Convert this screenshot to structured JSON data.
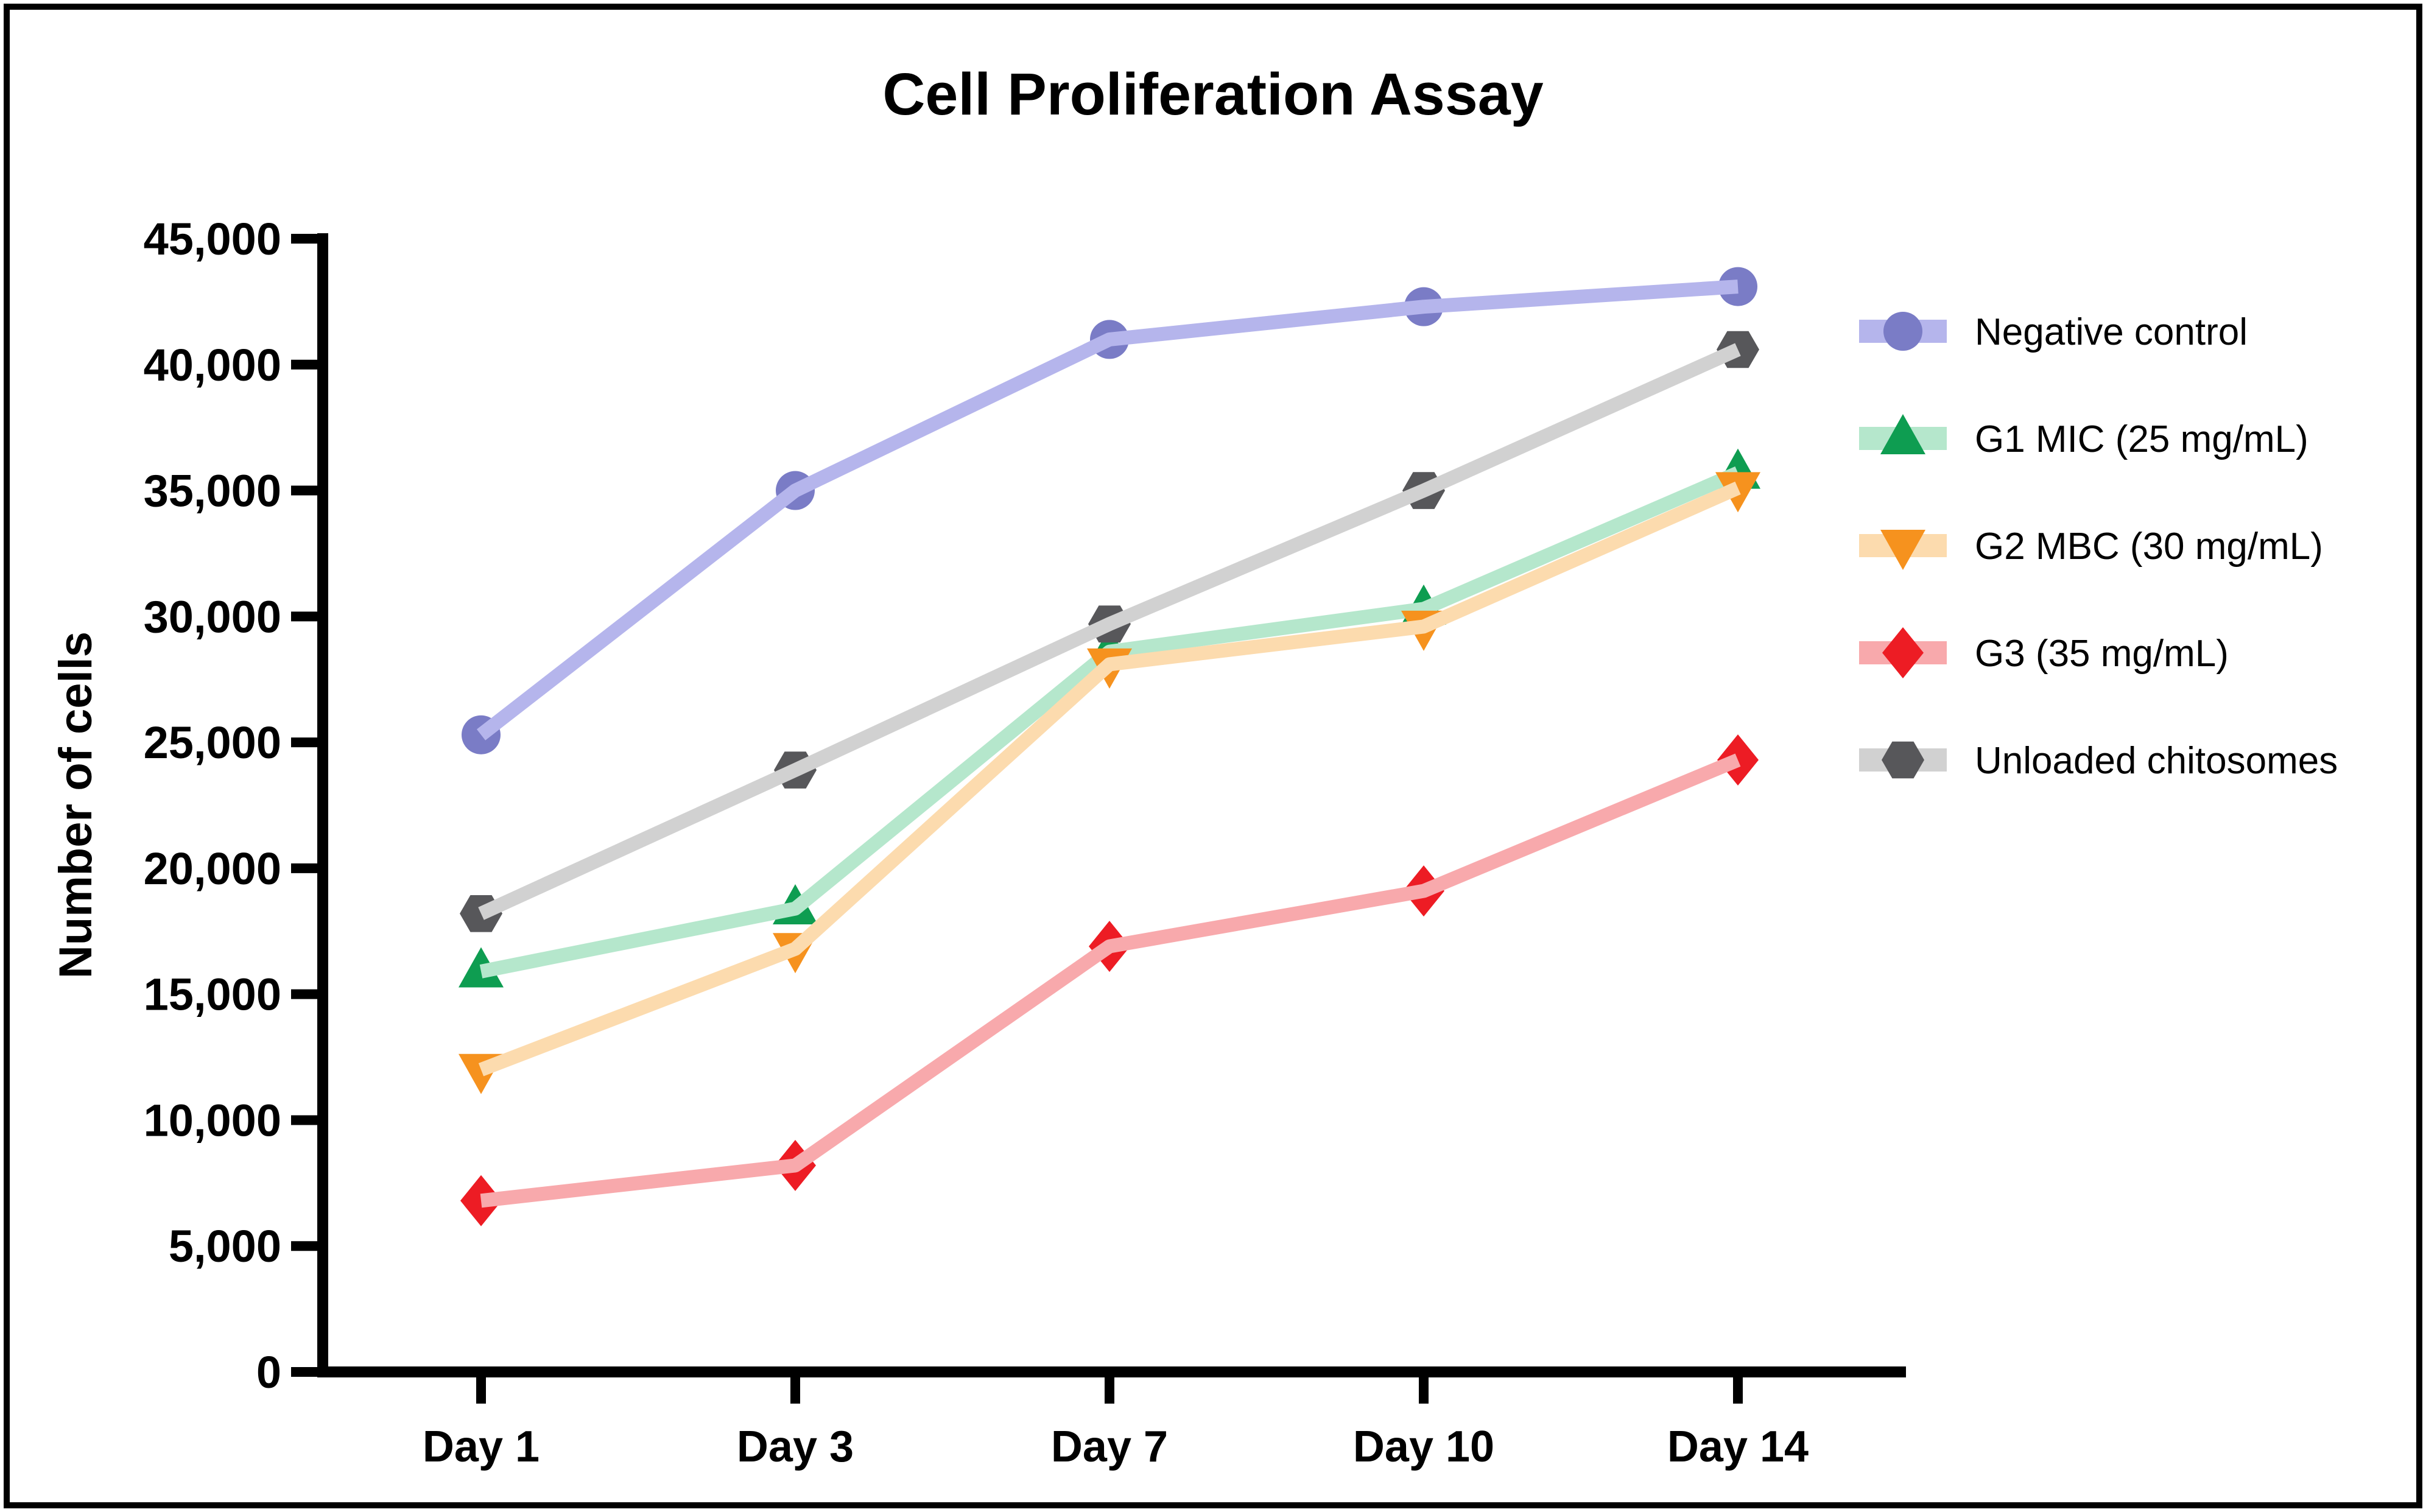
{
  "figure": {
    "title": "Cell Proliferation Assay",
    "border_color": "#000000",
    "background_color": "#ffffff",
    "axis_color": "#000000"
  },
  "chart_data": {
    "type": "line",
    "title": "Cell Proliferation Assay",
    "xlabel": "",
    "ylabel": "Number of cells",
    "categories": [
      "Day 1",
      "Day 3",
      "Day 7",
      "Day 10",
      "Day 14"
    ],
    "ylim": [
      0,
      45000
    ],
    "y_tick_step": 5000,
    "y_tick_labels": [
      "0",
      "5,000",
      "10,000",
      "15,000",
      "20,000",
      "25,000",
      "30,000",
      "35,000",
      "40,000",
      "45,000"
    ],
    "grid": false,
    "legend_position": "right",
    "series": [
      {
        "name": "Negative control",
        "marker": "circle",
        "line_color": "#b5b5ec",
        "marker_color": "#7a7cc6",
        "values": [
          25300,
          35000,
          41000,
          42300,
          43100
        ]
      },
      {
        "name": "G1 MIC (25 mg/mL)",
        "marker": "triangle-up",
        "line_color": "#b5e7cc",
        "marker_color": "#0e9d51",
        "values": [
          15900,
          18400,
          28600,
          30300,
          35700
        ]
      },
      {
        "name": "G2 MBC (30 mg/mL)",
        "marker": "triangle-down",
        "line_color": "#fcdbae",
        "marker_color": "#f6921e",
        "values": [
          12000,
          16800,
          28100,
          29600,
          35100
        ]
      },
      {
        "name": "G3 (35 mg/mL)",
        "marker": "diamond",
        "line_color": "#f8a9ac",
        "marker_color": "#ed1c24",
        "values": [
          6800,
          8200,
          16900,
          19100,
          24300
        ]
      },
      {
        "name": "Unloaded chitosomes",
        "marker": "hexagon",
        "line_color": "#d1d1d1",
        "marker_color": "#57575a",
        "values": [
          18200,
          23900,
          29700,
          35000,
          40600
        ]
      }
    ]
  }
}
